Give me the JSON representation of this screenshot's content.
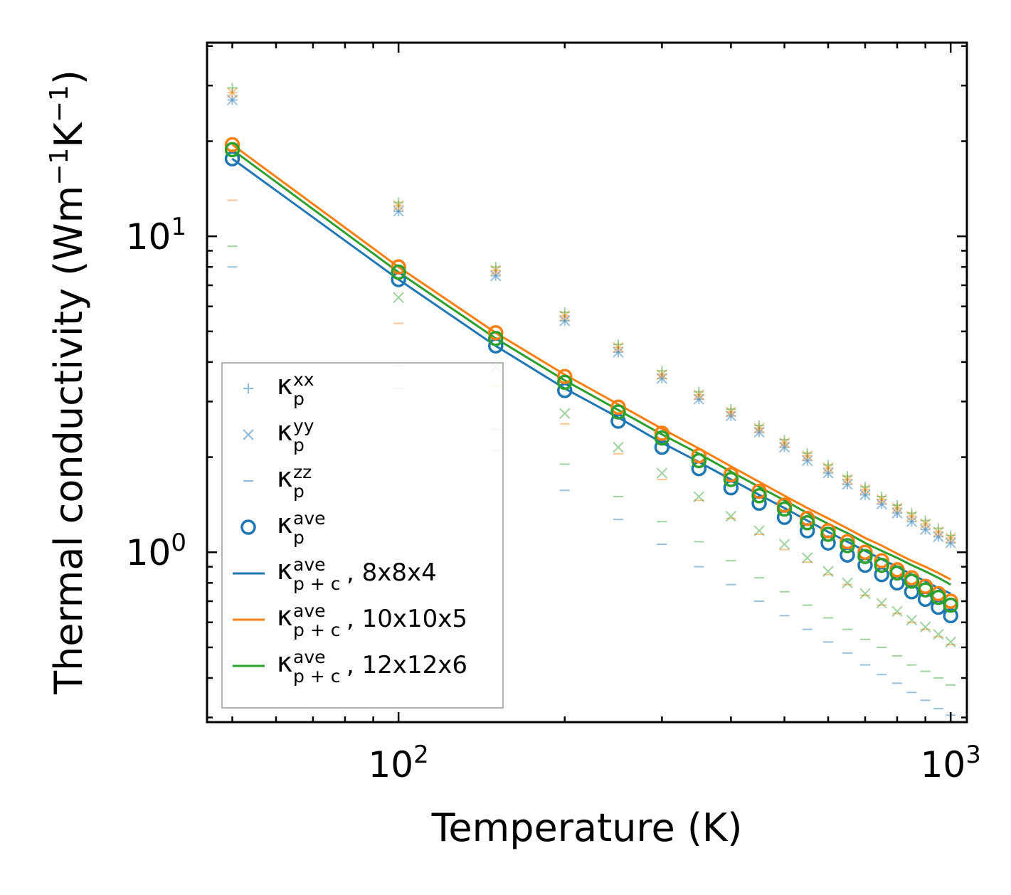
{
  "chart_data": {
    "type": "scatter",
    "xscale": "log",
    "yscale": "log",
    "xlabel": "Temperature (K)",
    "ylabel": {
      "base": "Thermal conductivity (Wm",
      "sup1": "−1",
      "mid": "K",
      "sup2": "−1",
      "end": ")"
    },
    "xlim": [
      45,
      1070
    ],
    "ylim": [
      0.29,
      41
    ],
    "xticks": [
      {
        "value": 100,
        "base": "10",
        "exp": "2"
      },
      {
        "value": 1000,
        "base": "10",
        "exp": "3"
      }
    ],
    "yticks": [
      {
        "value": 1,
        "base": "10",
        "exp": "0"
      },
      {
        "value": 10,
        "base": "10",
        "exp": "1"
      }
    ],
    "x": [
      50,
      100,
      150,
      200,
      250,
      300,
      350,
      400,
      450,
      500,
      550,
      600,
      650,
      700,
      750,
      800,
      850,
      900,
      950,
      1000
    ],
    "colors": {
      "c8": "#1f77b4",
      "c10": "#ff7f0e",
      "c12": "#2ca02c"
    },
    "series": [
      {
        "name": "8x8x4",
        "color": "#1f77b4",
        "ave_markers": [
          17.6,
          7.3,
          4.5,
          3.25,
          2.6,
          2.15,
          1.84,
          1.6,
          1.43,
          1.29,
          1.17,
          1.07,
          0.98,
          0.91,
          0.85,
          0.8,
          0.75,
          0.71,
          0.67,
          0.63
        ],
        "pc_line": [
          17.6,
          7.3,
          4.5,
          3.3,
          2.67,
          2.22,
          1.93,
          1.7,
          1.52,
          1.38,
          1.26,
          1.16,
          1.08,
          1.01,
          0.95,
          0.9,
          0.85,
          0.81,
          0.77,
          0.74
        ],
        "xx": [
          27,
          12,
          7.5,
          5.4,
          4.3,
          3.55,
          3.05,
          2.7,
          2.4,
          2.15,
          1.95,
          1.78,
          1.64,
          1.52,
          1.42,
          1.33,
          1.25,
          1.18,
          1.12,
          1.07
        ],
        "yy": [
          27,
          12,
          7.5,
          5.4,
          4.3,
          3.55,
          3.05,
          2.7,
          2.4,
          2.15,
          1.95,
          1.78,
          1.64,
          1.52,
          1.42,
          1.33,
          1.25,
          1.18,
          1.12,
          1.07
        ],
        "zz": [
          8,
          3.3,
          2.1,
          1.57,
          1.27,
          1.06,
          0.9,
          0.79,
          0.7,
          0.63,
          0.57,
          0.52,
          0.48,
          0.44,
          0.41,
          0.385,
          0.36,
          0.34,
          0.32,
          0.305
        ]
      },
      {
        "name": "10x10x5",
        "color": "#ff7f0e",
        "ave_markers": [
          19.5,
          8,
          4.95,
          3.6,
          2.88,
          2.38,
          2.02,
          1.76,
          1.56,
          1.41,
          1.28,
          1.17,
          1.08,
          1,
          0.94,
          0.88,
          0.83,
          0.78,
          0.74,
          0.7
        ],
        "pc_line": [
          19.5,
          8,
          4.95,
          3.65,
          2.94,
          2.46,
          2.13,
          1.87,
          1.67,
          1.51,
          1.38,
          1.28,
          1.19,
          1.11,
          1.05,
          0.99,
          0.94,
          0.9,
          0.86,
          0.82
        ],
        "xx": [
          28.5,
          12.5,
          7.8,
          5.6,
          4.45,
          3.65,
          3.15,
          2.78,
          2.47,
          2.22,
          2.02,
          1.85,
          1.7,
          1.58,
          1.47,
          1.38,
          1.3,
          1.23,
          1.16,
          1.11
        ],
        "yy": [
          28.5,
          12.5,
          7.8,
          5.6,
          4.45,
          3.65,
          3.15,
          2.78,
          2.47,
          2.22,
          2.02,
          1.85,
          1.7,
          1.58,
          1.47,
          1.38,
          1.3,
          1.23,
          1.16,
          1.11
        ],
        "zz": [
          13,
          5.3,
          3.35,
          2.55,
          2.05,
          1.7,
          1.46,
          1.28,
          1.14,
          1.02,
          0.93,
          0.85,
          0.79,
          0.73,
          0.68,
          0.64,
          0.6,
          0.57,
          0.54,
          0.51
        ]
      },
      {
        "name": "12x12x6",
        "color": "#2ca02c",
        "ave_markers": [
          18.8,
          7.7,
          4.75,
          3.45,
          2.78,
          2.3,
          1.95,
          1.7,
          1.51,
          1.37,
          1.24,
          1.14,
          1.05,
          0.97,
          0.91,
          0.86,
          0.81,
          0.76,
          0.72,
          0.68
        ],
        "pc_line": [
          18.8,
          7.7,
          4.75,
          3.5,
          2.82,
          2.36,
          2.05,
          1.8,
          1.61,
          1.46,
          1.33,
          1.23,
          1.15,
          1.07,
          1.01,
          0.96,
          0.91,
          0.87,
          0.83,
          0.79
        ],
        "xx": [
          29.5,
          12.8,
          8,
          5.75,
          4.55,
          3.75,
          3.22,
          2.84,
          2.52,
          2.27,
          2.06,
          1.89,
          1.74,
          1.61,
          1.5,
          1.41,
          1.33,
          1.26,
          1.19,
          1.13
        ],
        "yy": [
          null,
          6.4,
          3.85,
          2.75,
          2.15,
          1.78,
          1.5,
          1.3,
          1.17,
          1.06,
          0.96,
          0.87,
          0.8,
          0.74,
          0.69,
          0.65,
          0.61,
          0.58,
          0.55,
          0.52
        ],
        "zz": [
          9.3,
          3.9,
          2.45,
          1.9,
          1.5,
          1.25,
          1.08,
          0.94,
          0.83,
          0.75,
          0.68,
          0.62,
          0.57,
          0.53,
          0.5,
          0.47,
          0.44,
          0.42,
          0.4,
          0.38
        ]
      }
    ],
    "legend": {
      "position": "lower-left",
      "entries": [
        {
          "kind": "plus",
          "sym": "κ",
          "sub": "p",
          "sup": "xx",
          "rest": ""
        },
        {
          "kind": "cross",
          "sym": "κ",
          "sub": "p",
          "sup": "yy",
          "rest": ""
        },
        {
          "kind": "dash",
          "sym": "κ",
          "sub": "p",
          "sup": "zz",
          "rest": ""
        },
        {
          "kind": "circle",
          "sym": "κ",
          "sub": "p",
          "sup": "ave",
          "rest": ""
        },
        {
          "kind": "line",
          "color": "#1f77b4",
          "sym": "κ",
          "sub": "p + c",
          "sup": "ave",
          "rest": ", 8x8x4"
        },
        {
          "kind": "line",
          "color": "#ff7f0e",
          "sym": "κ",
          "sub": "p + c",
          "sup": "ave",
          "rest": ", 10x10x5"
        },
        {
          "kind": "line",
          "color": "#2ca02c",
          "sym": "κ",
          "sub": "p + c",
          "sup": "ave",
          "rest": ", 12x12x6"
        }
      ]
    }
  }
}
